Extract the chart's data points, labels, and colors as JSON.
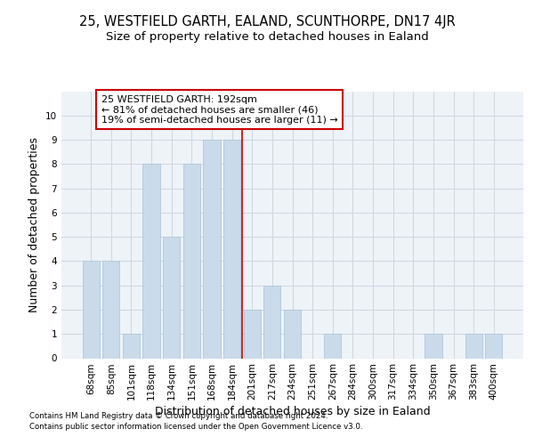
{
  "title_line1": "25, WESTFIELD GARTH, EALAND, SCUNTHORPE, DN17 4JR",
  "title_line2": "Size of property relative to detached houses in Ealand",
  "xlabel": "Distribution of detached houses by size in Ealand",
  "ylabel": "Number of detached properties",
  "categories": [
    "68sqm",
    "85sqm",
    "101sqm",
    "118sqm",
    "134sqm",
    "151sqm",
    "168sqm",
    "184sqm",
    "201sqm",
    "217sqm",
    "234sqm",
    "251sqm",
    "267sqm",
    "284sqm",
    "300sqm",
    "317sqm",
    "334sqm",
    "350sqm",
    "367sqm",
    "383sqm",
    "400sqm"
  ],
  "values": [
    4,
    4,
    1,
    8,
    5,
    8,
    9,
    9,
    2,
    3,
    2,
    0,
    1,
    0,
    0,
    0,
    0,
    1,
    0,
    1,
    1
  ],
  "bar_color": "#c9daea",
  "bar_edgecolor": "#b0c8dc",
  "ref_line_color": "#cc0000",
  "annotation_text": "25 WESTFIELD GARTH: 192sqm\n← 81% of detached houses are smaller (46)\n19% of semi-detached houses are larger (11) →",
  "annotation_box_color": "#cc0000",
  "ylim": [
    0,
    11
  ],
  "yticks": [
    0,
    1,
    2,
    3,
    4,
    5,
    6,
    7,
    8,
    9,
    10
  ],
  "grid_color": "#d0d8e0",
  "background_color": "#eef3f8",
  "footer_line1": "Contains HM Land Registry data © Crown copyright and database right 2024.",
  "footer_line2": "Contains public sector information licensed under the Open Government Licence v3.0.",
  "title_fontsize": 10.5,
  "subtitle_fontsize": 9.5,
  "axis_label_fontsize": 9,
  "tick_fontsize": 7.5,
  "annotation_fontsize": 8
}
